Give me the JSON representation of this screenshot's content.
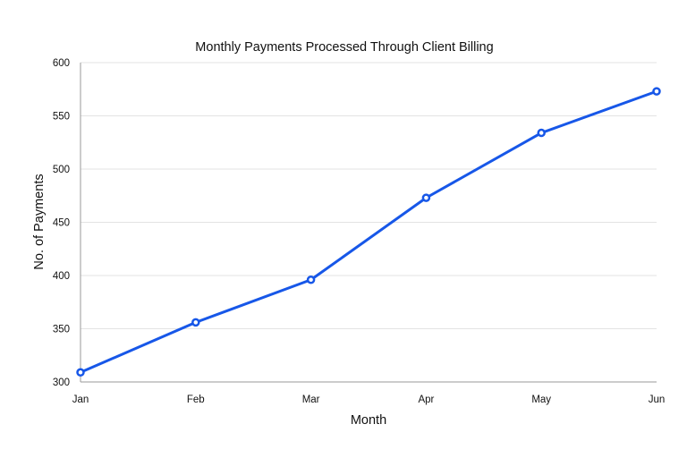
{
  "chart_data": {
    "type": "line",
    "title": "Monthly Payments Processed Through Client Billing",
    "xlabel": "Month",
    "ylabel": "No. of Payments",
    "categories": [
      "Jan",
      "Feb",
      "Mar",
      "Apr",
      "May",
      "Jun"
    ],
    "series": [
      {
        "values": [
          309,
          356,
          396,
          473,
          534,
          573
        ]
      }
    ],
    "ylim": [
      300,
      600
    ],
    "yticks": [
      "300",
      "350",
      "400",
      "450",
      "500",
      "550",
      "600"
    ],
    "grid": true,
    "legend": "none",
    "colors": {
      "line": "#1757e8"
    }
  }
}
